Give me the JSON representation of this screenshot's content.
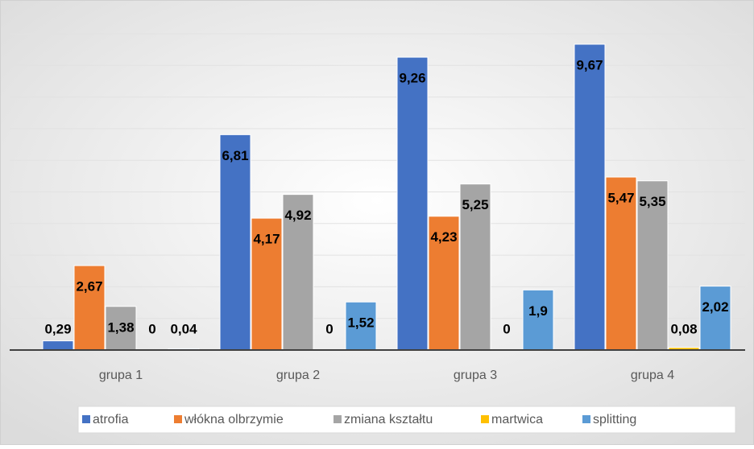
{
  "chart_data": {
    "type": "bar",
    "categories": [
      "grupa 1",
      "grupa 2",
      "grupa 3",
      "grupa 4"
    ],
    "series": [
      {
        "name": "atrofia",
        "color": "#4472c4",
        "values": [
          0.29,
          6.81,
          9.26,
          9.67
        ],
        "value_labels": [
          "0,29",
          "6,81",
          "9,26",
          "9,67"
        ]
      },
      {
        "name": "włókna olbrzymie",
        "color": "#ed7d31",
        "values": [
          2.67,
          4.17,
          4.23,
          5.47
        ],
        "value_labels": [
          "2,67",
          "4,17",
          "4,23",
          "5,47"
        ]
      },
      {
        "name": "zmiana kształtu",
        "color": "#a5a5a5",
        "values": [
          1.38,
          4.92,
          5.25,
          5.35
        ],
        "value_labels": [
          "1,38",
          "4,92",
          "5,25",
          "5,35"
        ]
      },
      {
        "name": "martwica",
        "color": "#ffc000",
        "values": [
          0,
          0,
          0,
          0.08
        ],
        "value_labels": [
          "0",
          "0",
          "0",
          "0,08"
        ]
      },
      {
        "name": "splitting",
        "color": "#5b9bd5",
        "values": [
          0.04,
          1.52,
          1.9,
          2.02
        ],
        "value_labels": [
          "0,04",
          "1,52",
          "1,9",
          "2,02"
        ]
      }
    ],
    "ylim": [
      0,
      10
    ],
    "grid": true,
    "legend": "bottom"
  }
}
